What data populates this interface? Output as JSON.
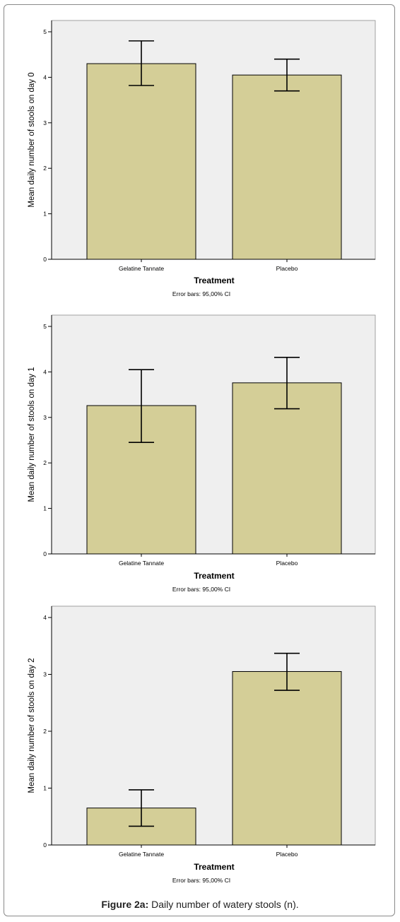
{
  "caption": {
    "label": "Figure 2a:",
    "text": "Daily number of watery stools (n)."
  },
  "style": {
    "plot_bg": "#efefef",
    "bar_fill": "#d4ce97",
    "bar_stroke": "#000000"
  },
  "chart_data": [
    {
      "type": "bar",
      "categories": [
        "Gelatine Tannate",
        "Placebo"
      ],
      "values": [
        4.3,
        4.05
      ],
      "ci_low": [
        3.82,
        3.7
      ],
      "ci_high": [
        4.8,
        4.4
      ],
      "xlabel": "Treatment",
      "ylabel": "Mean daily number of stools on day 0",
      "footnote": "Error bars: 95,00% CI",
      "ylim": [
        0,
        5
      ],
      "yticks": [
        "0",
        "1",
        "2",
        "3",
        "4",
        "5"
      ],
      "grid": false
    },
    {
      "type": "bar",
      "categories": [
        "Gelatine Tannate",
        "Placebo"
      ],
      "values": [
        3.26,
        3.76
      ],
      "ci_low": [
        2.45,
        3.19
      ],
      "ci_high": [
        4.05,
        4.32
      ],
      "xlabel": "Treatment",
      "ylabel": "Mean daily number of stools on day 1",
      "footnote": "Error bars: 95,00% CI",
      "ylim": [
        0,
        5
      ],
      "yticks": [
        "0",
        "1",
        "2",
        "3",
        "4",
        "5"
      ],
      "grid": false
    },
    {
      "type": "bar",
      "categories": [
        "Gelatine Tannate",
        "Placebo"
      ],
      "values": [
        0.65,
        3.05
      ],
      "ci_low": [
        0.33,
        2.72
      ],
      "ci_high": [
        0.97,
        3.37
      ],
      "xlabel": "Treatment",
      "ylabel": "Mean daily number of stools on day 2",
      "footnote": "Error bars: 95,00% CI",
      "ylim": [
        0,
        4
      ],
      "yticks": [
        "0",
        "1",
        "2",
        "3",
        "4"
      ],
      "grid": false
    }
  ]
}
